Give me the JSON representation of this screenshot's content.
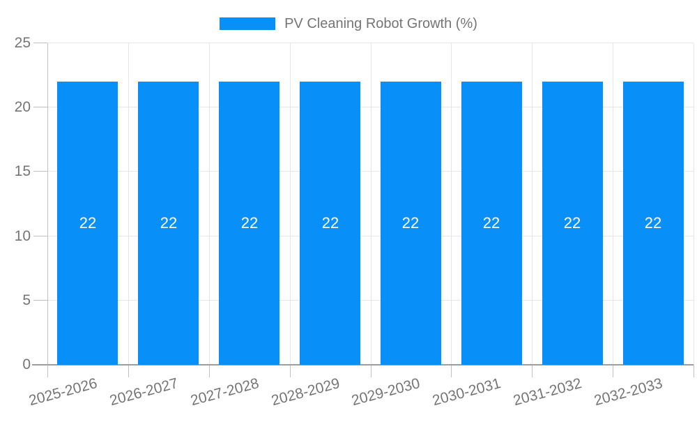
{
  "legend": {
    "label": "PV Cleaning Robot Growth (%)"
  },
  "colors": {
    "bar": "#0890F8",
    "axis_text": "#757575",
    "grid": "#E6E6E6",
    "axis_line": "#9E9E9E",
    "tick": "#C0C0C0",
    "bar_label": "#FFFFFF",
    "background": "#FFFFFF"
  },
  "chart_data": {
    "type": "bar",
    "title": "PV Cleaning Robot Growth (%)",
    "categories": [
      "2025-2026",
      "2026-2027",
      "2027-2028",
      "2028-2029",
      "2029-2030",
      "2030-2031",
      "2031-2032",
      "2032-2033"
    ],
    "values": [
      22,
      22,
      22,
      22,
      22,
      22,
      22,
      22
    ],
    "bar_value_labels": [
      "22",
      "22",
      "22",
      "22",
      "22",
      "22",
      "22",
      "22"
    ],
    "xlabel": "",
    "ylabel": "",
    "ylim": [
      0,
      25
    ],
    "yticks": [
      0,
      5,
      10,
      15,
      20,
      25
    ],
    "grid": true,
    "legend_position": "top-center",
    "bar_labels_inside": true,
    "x_label_rotation_deg": -15
  }
}
